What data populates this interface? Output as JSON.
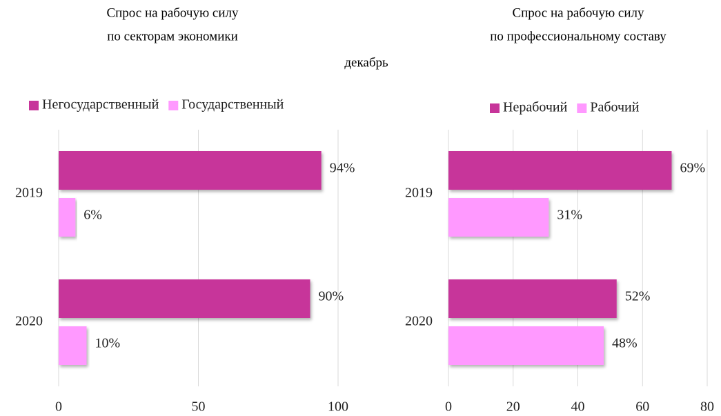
{
  "subtitle": "декабрь",
  "chart_data": [
    {
      "type": "bar",
      "orientation": "horizontal",
      "title": [
        "Спрос на рабочую силу",
        "по секторам экономики"
      ],
      "categories": [
        "2019",
        "2020"
      ],
      "series": [
        {
          "name": "Негосударственный",
          "color": "#c7359a",
          "values": [
            94,
            90
          ],
          "value_labels": [
            "94%",
            "90%"
          ]
        },
        {
          "name": "Государственный",
          "color": "#ff99ff",
          "values": [
            6,
            10
          ],
          "value_labels": [
            "6%",
            "10%"
          ]
        }
      ],
      "xlim": [
        0,
        100
      ],
      "xticks": [
        0,
        50,
        100
      ],
      "grid": true,
      "legend": "top"
    },
    {
      "type": "bar",
      "orientation": "horizontal",
      "title": [
        "Спрос на рабочую силу",
        "по профессиональному составу"
      ],
      "categories": [
        "2019",
        "2020"
      ],
      "series": [
        {
          "name": "Нерабочий",
          "color": "#c7359a",
          "values": [
            69,
            52
          ],
          "value_labels": [
            "69%",
            "52%"
          ]
        },
        {
          "name": "Рабочий",
          "color": "#ff99ff",
          "values": [
            31,
            48
          ],
          "value_labels": [
            "31%",
            "48%"
          ]
        }
      ],
      "xlim": [
        0,
        80
      ],
      "xticks": [
        0,
        20,
        40,
        60,
        80
      ],
      "grid": true,
      "legend": "top"
    }
  ]
}
